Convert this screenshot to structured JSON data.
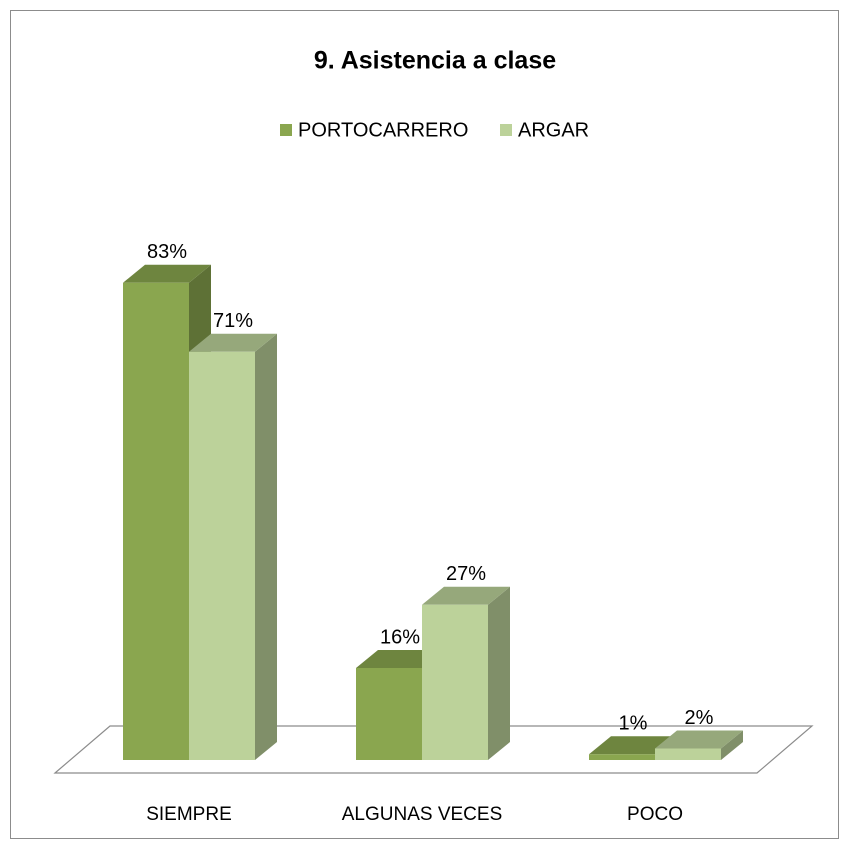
{
  "chart_data": {
    "type": "bar3d",
    "title": "9. Asistencia a clase",
    "categories": [
      "SIEMPRE",
      "ALGUNAS VECES",
      "POCO"
    ],
    "series": [
      {
        "name": "PORTOCARRERO",
        "color": "#8aa64f",
        "values": [
          83,
          16,
          1
        ],
        "value_labels": [
          "83%",
          "16%",
          "1%"
        ]
      },
      {
        "name": "ARGAR",
        "color": "#bcd29a",
        "values": [
          71,
          27,
          2
        ],
        "value_labels": [
          "71%",
          "27%",
          "2%"
        ]
      }
    ],
    "legend": "top"
  }
}
